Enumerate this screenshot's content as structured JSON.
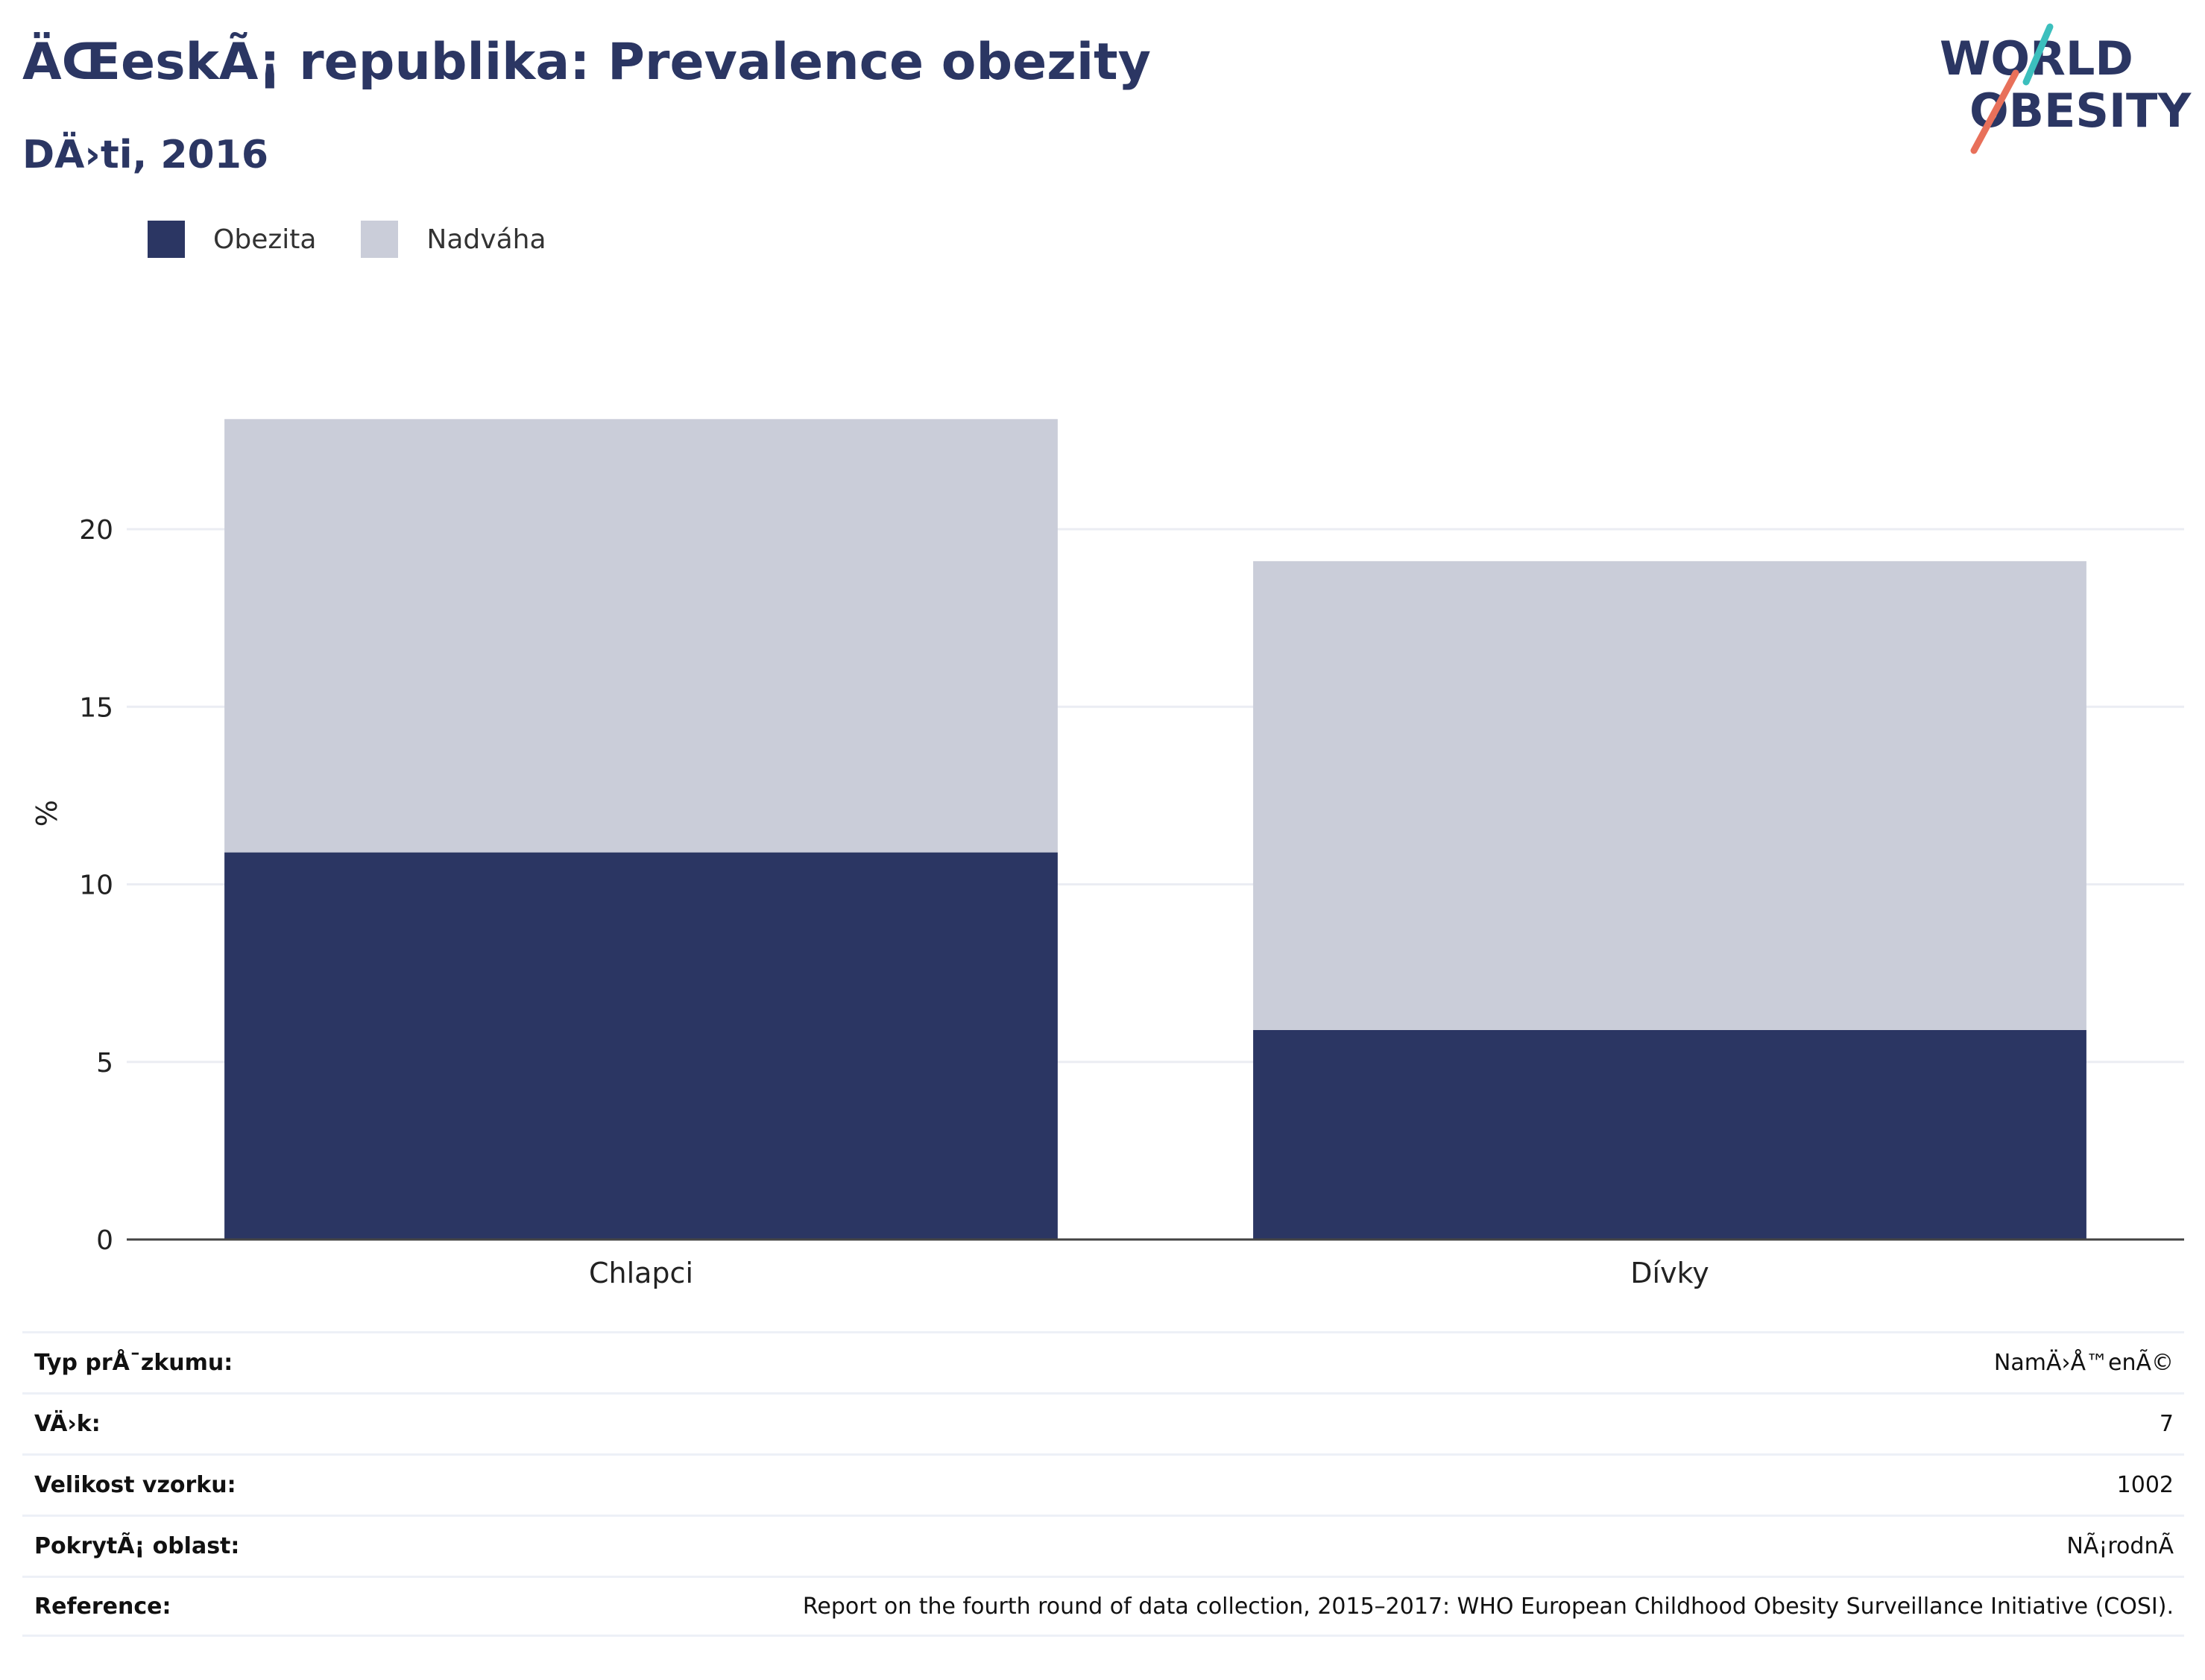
{
  "header": {
    "title": "ÄŒeskÃ¡ republika: Prevalence obezity",
    "subtitle": "DÄ›ti, 2016"
  },
  "logo": {
    "line1": "WORLD",
    "line2": "OBESITY"
  },
  "colors": {
    "obezita": "#2b3663",
    "nadvaha": "#cacdd9",
    "accent_teal": "#3cbfbd",
    "accent_red": "#e8705a",
    "text_dark": "#2b3663"
  },
  "chart_data": {
    "type": "bar",
    "stacked": true,
    "categories": [
      "Chlapci",
      "Dívky"
    ],
    "series": [
      {
        "name": "Obezita",
        "values": [
          10.9,
          5.9
        ]
      },
      {
        "name": "Nadváha",
        "values": [
          12.2,
          13.2
        ]
      }
    ],
    "ylabel": "%",
    "xlabel": "",
    "ylim": [
      0,
      24
    ],
    "yticks": [
      0,
      5,
      10,
      15,
      20
    ],
    "grid": true,
    "legend": "top-left"
  },
  "info": [
    {
      "label": "Typ prÅ¯zkumu:",
      "value": "NamÄ›Å™enÃ©"
    },
    {
      "label": "VÄ›k:",
      "value": "7"
    },
    {
      "label": "Velikost vzorku:",
      "value": "1002"
    },
    {
      "label": "PokrytÃ¡ oblast:",
      "value": "NÃ¡rodnÃ"
    },
    {
      "label": "Reference:",
      "value": "Report on the fourth round of data collection, 2015–2017: WHO European Childhood Obesity Surveillance Initiative (COSI)."
    }
  ]
}
